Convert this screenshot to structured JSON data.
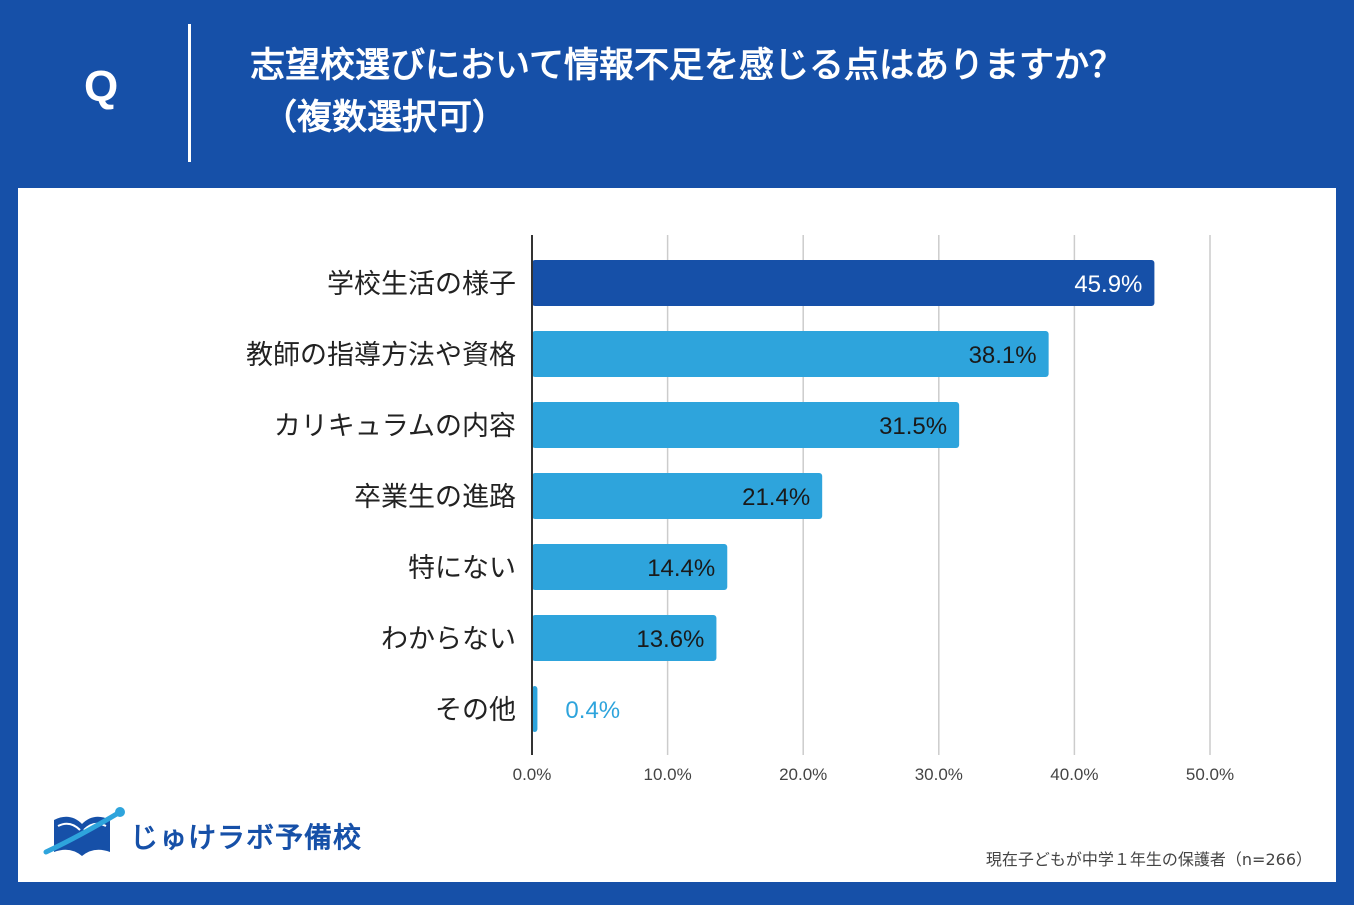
{
  "header": {
    "q_label": "Q",
    "question_line1": "志望校選びにおいて情報不足を感じる点はありますか？",
    "question_line2": "（複数選択可）"
  },
  "colors": {
    "background": "#1650a8",
    "highlight_bar": "#1650a8",
    "bar": "#2ea4dc",
    "value_on_highlight": "#ffffff",
    "value_on_bar": "#1a1a1a",
    "value_outside": "#2ea4dc",
    "grid": "#cccccc",
    "axis": "#333333"
  },
  "chart_data": {
    "type": "bar",
    "orientation": "horizontal",
    "title": "志望校選びにおいて情報不足を感じる点はありますか？（複数選択可）",
    "categories": [
      "学校生活の様子",
      "教師の指導方法や資格",
      "カリキュラムの内容",
      "卒業生の進路",
      "特にない",
      "わからない",
      "その他"
    ],
    "values": [
      45.9,
      38.1,
      31.5,
      21.4,
      14.4,
      13.6,
      0.4
    ],
    "value_labels": [
      "45.9%",
      "38.1%",
      "31.5%",
      "21.4%",
      "14.4%",
      "13.6%",
      "0.4%"
    ],
    "highlight_index": 0,
    "xlim": [
      0,
      50
    ],
    "xticks": [
      0,
      10,
      20,
      30,
      40,
      50
    ],
    "xtick_labels": [
      "0.0%",
      "10.0%",
      "20.0%",
      "30.0%",
      "40.0%",
      "50.0%"
    ],
    "grid": true,
    "xlabel": "",
    "ylabel": ""
  },
  "footer": {
    "logo_text": "じゅけラボ予備校",
    "source": "現在子どもが中学１年生の保護者（n=266）"
  }
}
